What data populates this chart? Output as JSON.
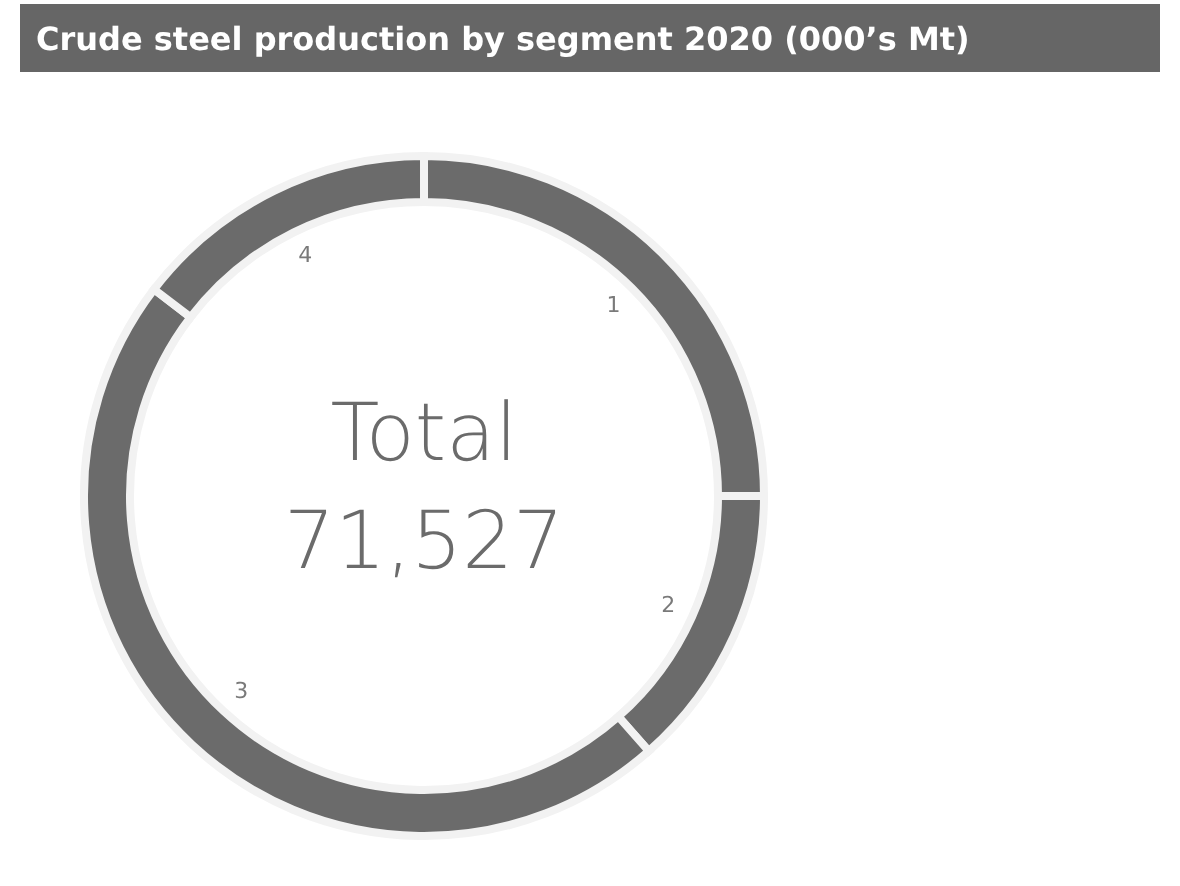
{
  "chart_data": {
    "type": "donut",
    "title": "Crude steel production by segment 2020 (000’s Mt)",
    "categories": [
      "1",
      "2",
      "3",
      "4"
    ],
    "values": [
      25.0,
      13.5,
      46.9,
      14.6
    ],
    "colors": [
      "#6b6b6b",
      "#6b6b6b",
      "#6b6b6b",
      "#6b6b6b"
    ],
    "annotations": [
      "Total",
      "71,527"
    ]
  }
}
